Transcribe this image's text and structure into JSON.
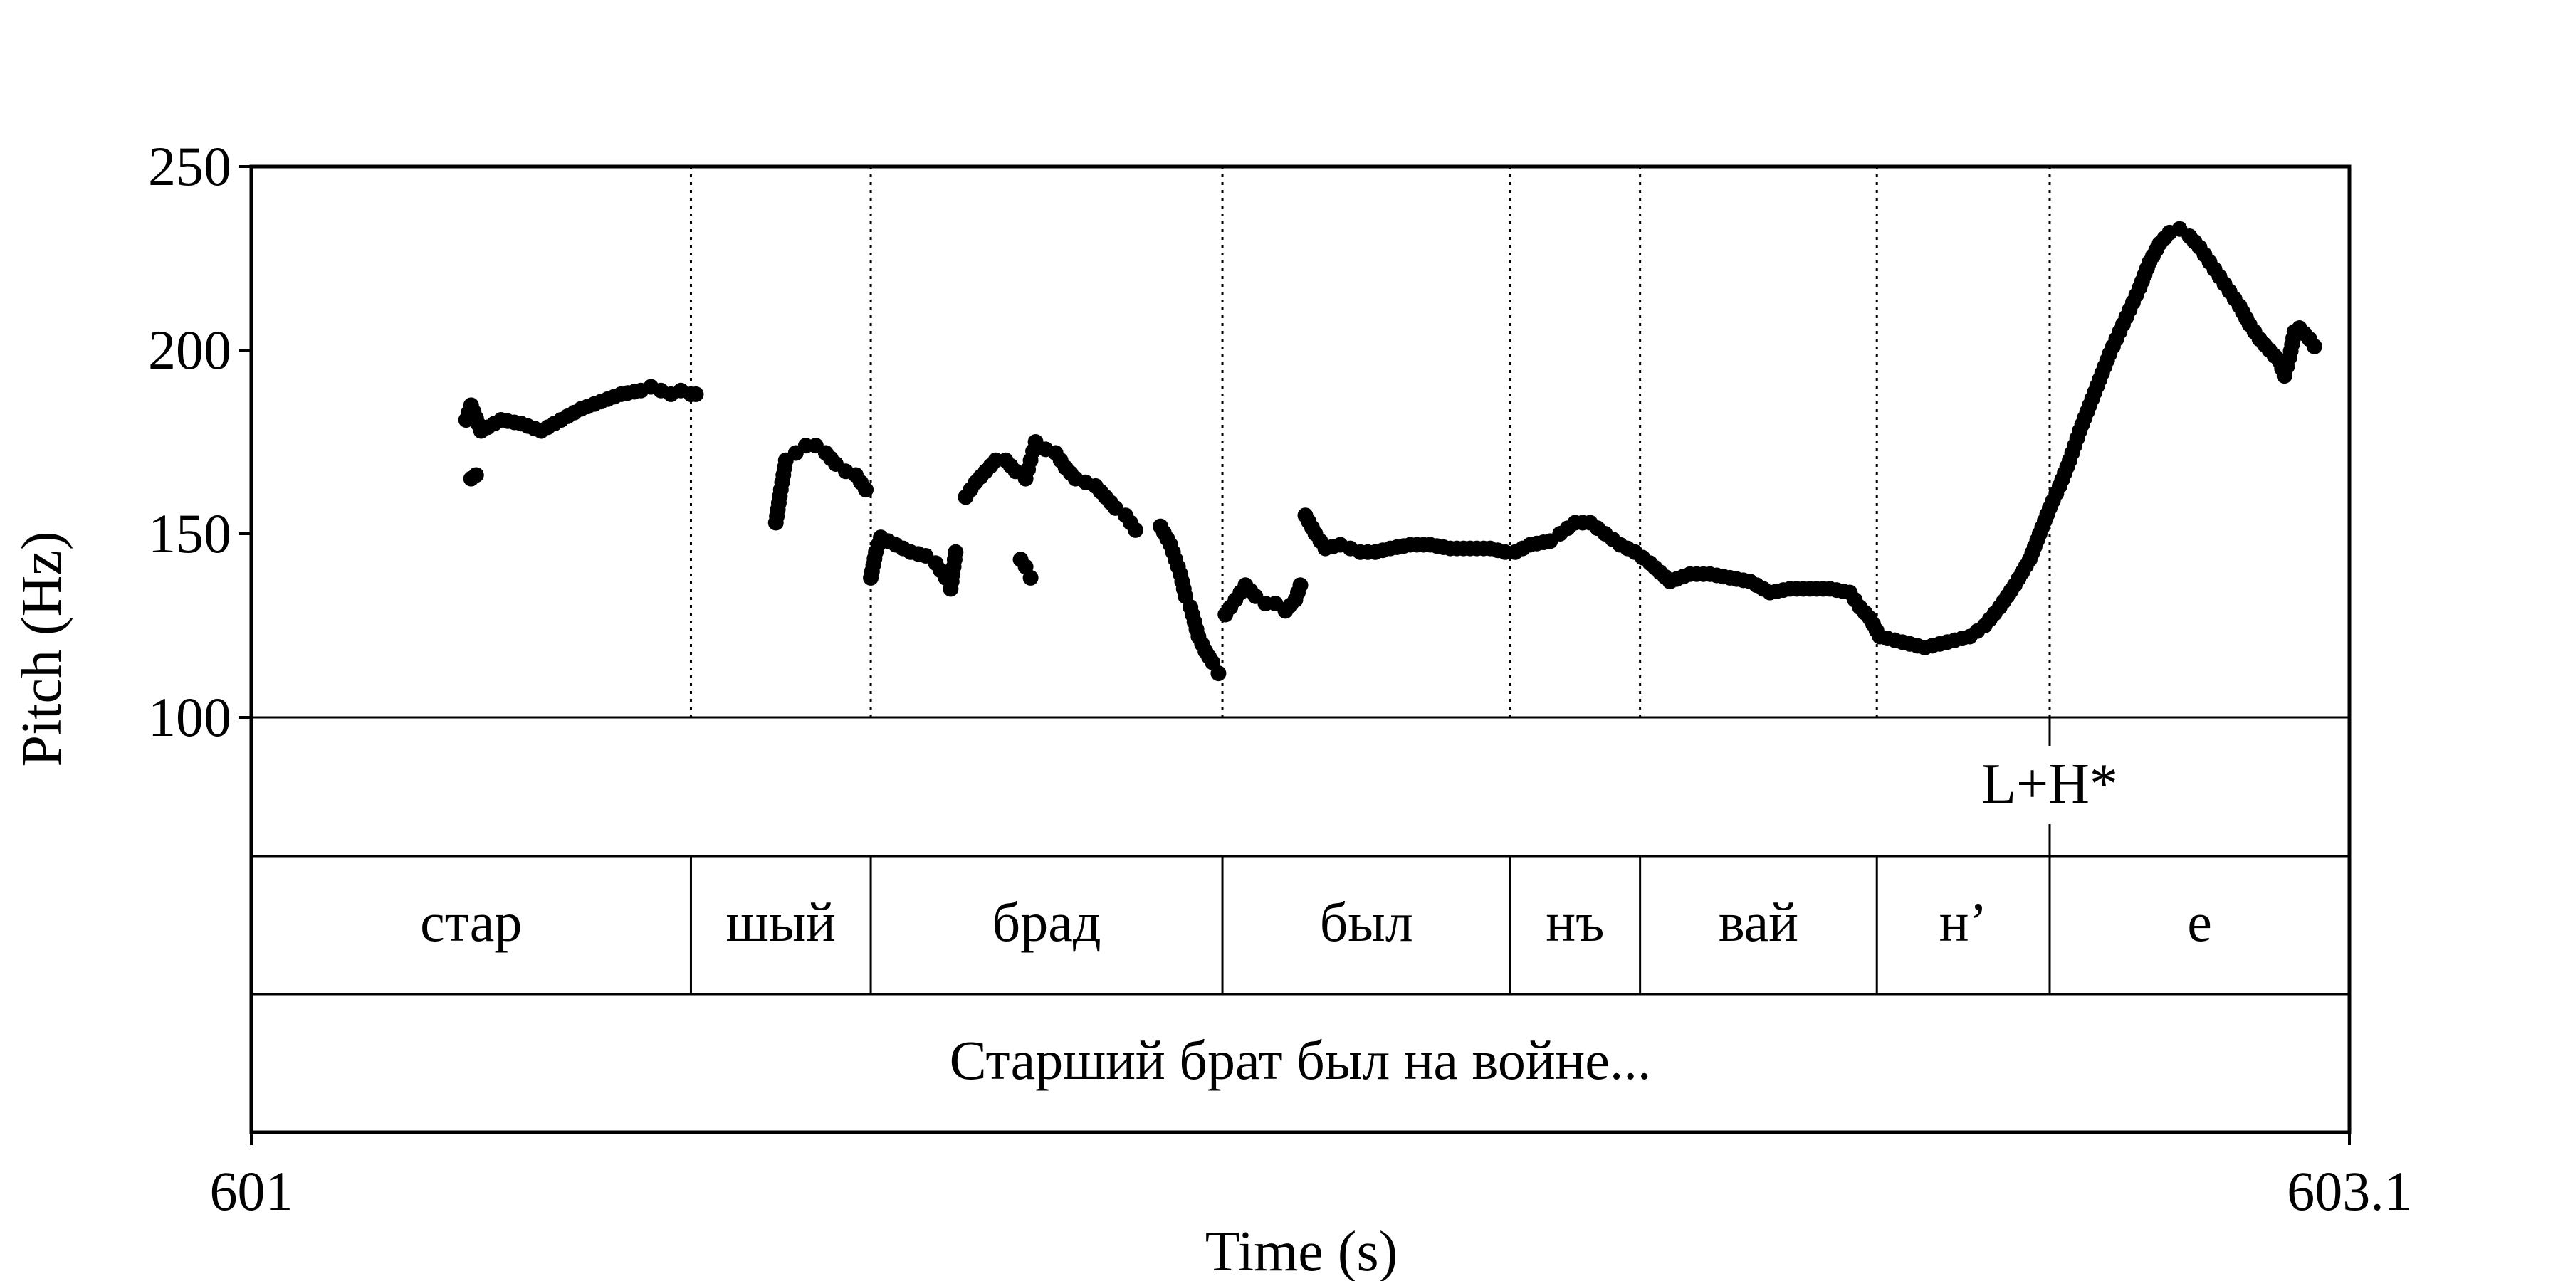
{
  "chart_data": {
    "type": "scatter",
    "title": "",
    "xlabel": "Time (s)",
    "ylabel": "Pitch (Hz)",
    "xlim": [
      601,
      603.1
    ],
    "ylim": [
      100,
      250
    ],
    "x_tick_labels": [
      "601",
      "603.1"
    ],
    "y_ticks": [
      100,
      150,
      200,
      250
    ],
    "y_tick_labels": [
      "100",
      "150",
      "200",
      "250"
    ],
    "point_color": "#000000",
    "segment_boundaries": [
      601.44,
      601.62,
      601.972,
      602.26,
      602.39,
      602.627,
      602.8
    ],
    "tone_tier": {
      "marks": [
        {
          "time": 602.8,
          "label": "L+H*"
        }
      ]
    },
    "syllable_tier": [
      {
        "start": 601.0,
        "end": 601.44,
        "label": "стар"
      },
      {
        "start": 601.44,
        "end": 601.62,
        "label": "шый"
      },
      {
        "start": 601.62,
        "end": 601.972,
        "label": "брад"
      },
      {
        "start": 601.972,
        "end": 602.26,
        "label": "был"
      },
      {
        "start": 602.26,
        "end": 602.39,
        "label": "нъ"
      },
      {
        "start": 602.39,
        "end": 602.627,
        "label": "вай"
      },
      {
        "start": 602.627,
        "end": 602.8,
        "label": "н’"
      },
      {
        "start": 602.8,
        "end": 603.1,
        "label": "е"
      }
    ],
    "sentence_tier": [
      {
        "start": 601.0,
        "end": 603.1,
        "label": "Старший брат был на войне..."
      }
    ],
    "pitch_contours": [
      [
        [
          601.215,
          181
        ],
        [
          601.22,
          185
        ],
        [
          601.23,
          178
        ],
        [
          601.25,
          181
        ],
        [
          601.27,
          180
        ],
        [
          601.29,
          178
        ],
        [
          601.31,
          181
        ],
        [
          601.33,
          184
        ],
        [
          601.35,
          186
        ],
        [
          601.37,
          188
        ],
        [
          601.39,
          189
        ],
        [
          601.4,
          190
        ],
        [
          601.41,
          189
        ],
        [
          601.42,
          188
        ],
        [
          601.43,
          189
        ],
        [
          601.44,
          188
        ],
        [
          601.445,
          188
        ]
      ],
      [
        [
          601.22,
          165
        ],
        [
          601.225,
          166
        ]
      ],
      [
        [
          601.525,
          153
        ],
        [
          601.53,
          162
        ],
        [
          601.535,
          170
        ],
        [
          601.545,
          172
        ],
        [
          601.555,
          174
        ],
        [
          601.565,
          174
        ],
        [
          601.575,
          172
        ],
        [
          601.585,
          169
        ],
        [
          601.595,
          167
        ],
        [
          601.605,
          166
        ],
        [
          601.615,
          162
        ]
      ],
      [
        [
          601.62,
          138
        ],
        [
          601.625,
          145
        ],
        [
          601.63,
          149
        ],
        [
          601.645,
          147
        ],
        [
          601.66,
          145
        ],
        [
          601.675,
          144
        ],
        [
          601.685,
          142
        ],
        [
          601.695,
          138
        ],
        [
          601.7,
          135
        ],
        [
          601.705,
          145
        ]
      ],
      [
        [
          601.715,
          160
        ],
        [
          601.725,
          164
        ],
        [
          601.735,
          167
        ],
        [
          601.745,
          170
        ],
        [
          601.755,
          170
        ],
        [
          601.765,
          167
        ],
        [
          601.775,
          165
        ],
        [
          601.78,
          170
        ],
        [
          601.785,
          175
        ],
        [
          601.795,
          173
        ],
        [
          601.805,
          172
        ],
        [
          601.815,
          168
        ],
        [
          601.825,
          165
        ],
        [
          601.835,
          164
        ],
        [
          601.845,
          163
        ],
        [
          601.855,
          160
        ],
        [
          601.865,
          157
        ],
        [
          601.875,
          155
        ],
        [
          601.885,
          151
        ]
      ],
      [
        [
          601.77,
          143
        ],
        [
          601.775,
          141
        ],
        [
          601.78,
          138
        ]
      ],
      [
        [
          601.91,
          152
        ],
        [
          601.92,
          147
        ],
        [
          601.93,
          139
        ],
        [
          601.935,
          133
        ],
        [
          601.94,
          130
        ],
        [
          601.948,
          122
        ],
        [
          601.955,
          118
        ],
        [
          601.962,
          115
        ],
        [
          601.968,
          112
        ]
      ],
      [
        [
          601.975,
          128
        ],
        [
          601.985,
          132
        ],
        [
          601.995,
          136
        ],
        [
          602.005,
          133
        ],
        [
          602.015,
          131
        ],
        [
          602.025,
          131
        ],
        [
          602.035,
          129
        ],
        [
          602.045,
          132
        ],
        [
          602.05,
          136
        ]
      ],
      [
        [
          602.055,
          155
        ],
        [
          602.065,
          150
        ],
        [
          602.075,
          146
        ],
        [
          602.09,
          147
        ],
        [
          602.1,
          146
        ],
        [
          602.11,
          145
        ],
        [
          602.125,
          145
        ],
        [
          602.14,
          146
        ],
        [
          602.16,
          147
        ],
        [
          602.18,
          147
        ],
        [
          602.2,
          146
        ],
        [
          602.22,
          146
        ],
        [
          602.24,
          146
        ],
        [
          602.255,
          145
        ],
        [
          602.265,
          145
        ],
        [
          602.28,
          147
        ],
        [
          602.3,
          148
        ],
        [
          602.31,
          150
        ],
        [
          602.325,
          153
        ],
        [
          602.34,
          153
        ],
        [
          602.355,
          150
        ],
        [
          602.37,
          147
        ],
        [
          602.385,
          145
        ],
        [
          602.4,
          142
        ],
        [
          602.42,
          137
        ],
        [
          602.44,
          139
        ],
        [
          602.46,
          139
        ],
        [
          602.48,
          138
        ],
        [
          602.5,
          137
        ],
        [
          602.52,
          134
        ],
        [
          602.54,
          135
        ],
        [
          602.56,
          135
        ],
        [
          602.58,
          135
        ],
        [
          602.6,
          134
        ],
        [
          602.61,
          130
        ],
        [
          602.62,
          127
        ],
        [
          602.63,
          122
        ],
        [
          602.645,
          121
        ],
        [
          602.66,
          120
        ],
        [
          602.675,
          119
        ],
        [
          602.69,
          120
        ],
        [
          602.705,
          121
        ],
        [
          602.72,
          122
        ],
        [
          602.735,
          125
        ],
        [
          602.75,
          130
        ],
        [
          602.765,
          136
        ],
        [
          602.78,
          143
        ],
        [
          602.79,
          150
        ],
        [
          602.8,
          157
        ],
        [
          602.81,
          163
        ],
        [
          602.82,
          170
        ],
        [
          602.83,
          178
        ],
        [
          602.84,
          185
        ],
        [
          602.85,
          192
        ],
        [
          602.86,
          199
        ],
        [
          602.87,
          205
        ],
        [
          602.88,
          211
        ],
        [
          602.89,
          217
        ],
        [
          602.9,
          224
        ],
        [
          602.91,
          229
        ],
        [
          602.92,
          232
        ],
        [
          602.93,
          233
        ],
        [
          602.94,
          231
        ],
        [
          602.95,
          228
        ],
        [
          602.96,
          224
        ],
        [
          602.97,
          220
        ],
        [
          602.98,
          216
        ],
        [
          602.99,
          212
        ],
        [
          603.0,
          207
        ],
        [
          603.01,
          203
        ],
        [
          603.02,
          200
        ],
        [
          603.03,
          197
        ],
        [
          603.035,
          193
        ],
        [
          603.04,
          198
        ],
        [
          603.045,
          205
        ],
        [
          603.05,
          206
        ],
        [
          603.06,
          203
        ],
        [
          603.065,
          201
        ]
      ]
    ]
  }
}
